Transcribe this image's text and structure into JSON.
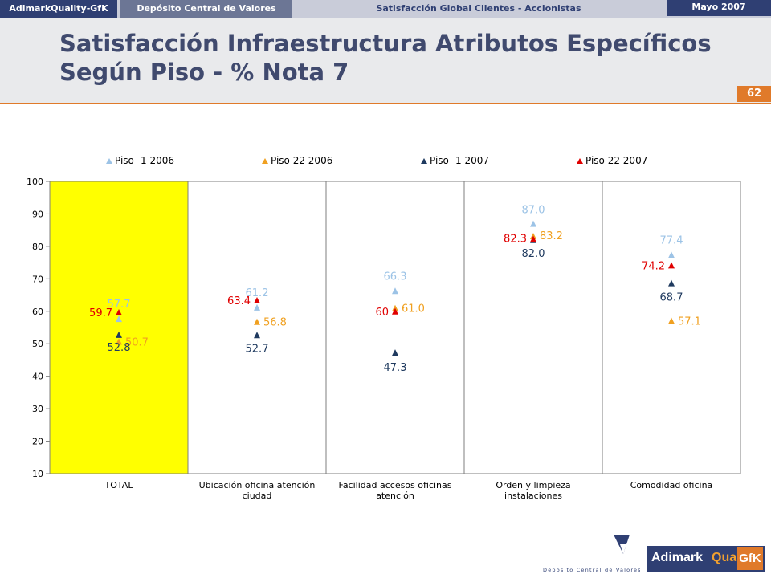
{
  "header": {
    "brand": "AdimarkQuality-GfK",
    "client": "Depósito Central de Valores",
    "study": "Satisfacción Global Clientes - Accionistas",
    "date": "Mayo 2007"
  },
  "page": {
    "title_line1": "Satisfacción Infraestructura Atributos Específicos",
    "title_line2": "Según Piso - % Nota 7",
    "number": "62"
  },
  "logos": {
    "dcv_text": "Depósito Central de Valores",
    "adimark_part1": "Adimark",
    "adimark_part2": "Quality",
    "adimark_part3": "GfK"
  },
  "colors": {
    "piso_neg1_2006": "#9cc3e6",
    "piso_22_2006": "#f0a020",
    "piso_neg1_2007": "#1f3a5f",
    "piso_22_2007": "#e00000",
    "highlight": "#ffff00"
  },
  "chart_data": {
    "type": "scatter",
    "title": "",
    "xlabel": "",
    "ylabel": "",
    "ylim": [
      10,
      100
    ],
    "yticks": [
      10,
      20,
      30,
      40,
      50,
      60,
      70,
      80,
      90,
      100
    ],
    "categories": [
      [
        "TOTAL"
      ],
      [
        "Ubicación oficina atención",
        "ciudad"
      ],
      [
        "Facilidad accesos oficinas",
        "atención"
      ],
      [
        "Orden y limpieza",
        "instalaciones"
      ],
      [
        "Comodidad oficina"
      ]
    ],
    "highlighted_category": 0,
    "legend_position": "top",
    "series": [
      {
        "name": "Piso -1 2006",
        "color": "#9cc3e6",
        "values": [
          57.7,
          61.2,
          66.3,
          87.0,
          77.4
        ],
        "labels": [
          "57.7",
          "61.2",
          "66.3",
          "87.0",
          "77.4"
        ]
      },
      {
        "name": "Piso 22 2006",
        "color": "#f0a020",
        "values": [
          50.7,
          56.8,
          61.0,
          83.2,
          57.1
        ],
        "labels": [
          "50.7",
          "56.8",
          "61.0",
          "83.2",
          "57.1"
        ]
      },
      {
        "name": "Piso -1 2007",
        "color": "#1f3a5f",
        "values": [
          52.8,
          52.7,
          47.3,
          82.0,
          68.7
        ],
        "labels": [
          "52.8",
          "52.7",
          "47.3",
          "82.0",
          "68.7"
        ]
      },
      {
        "name": "Piso 22 2007",
        "color": "#e00000",
        "values": [
          59.7,
          63.4,
          60,
          82.3,
          74.2
        ],
        "labels": [
          "59.7",
          "63.4",
          "60",
          "82.3",
          "74.2"
        ]
      }
    ]
  }
}
